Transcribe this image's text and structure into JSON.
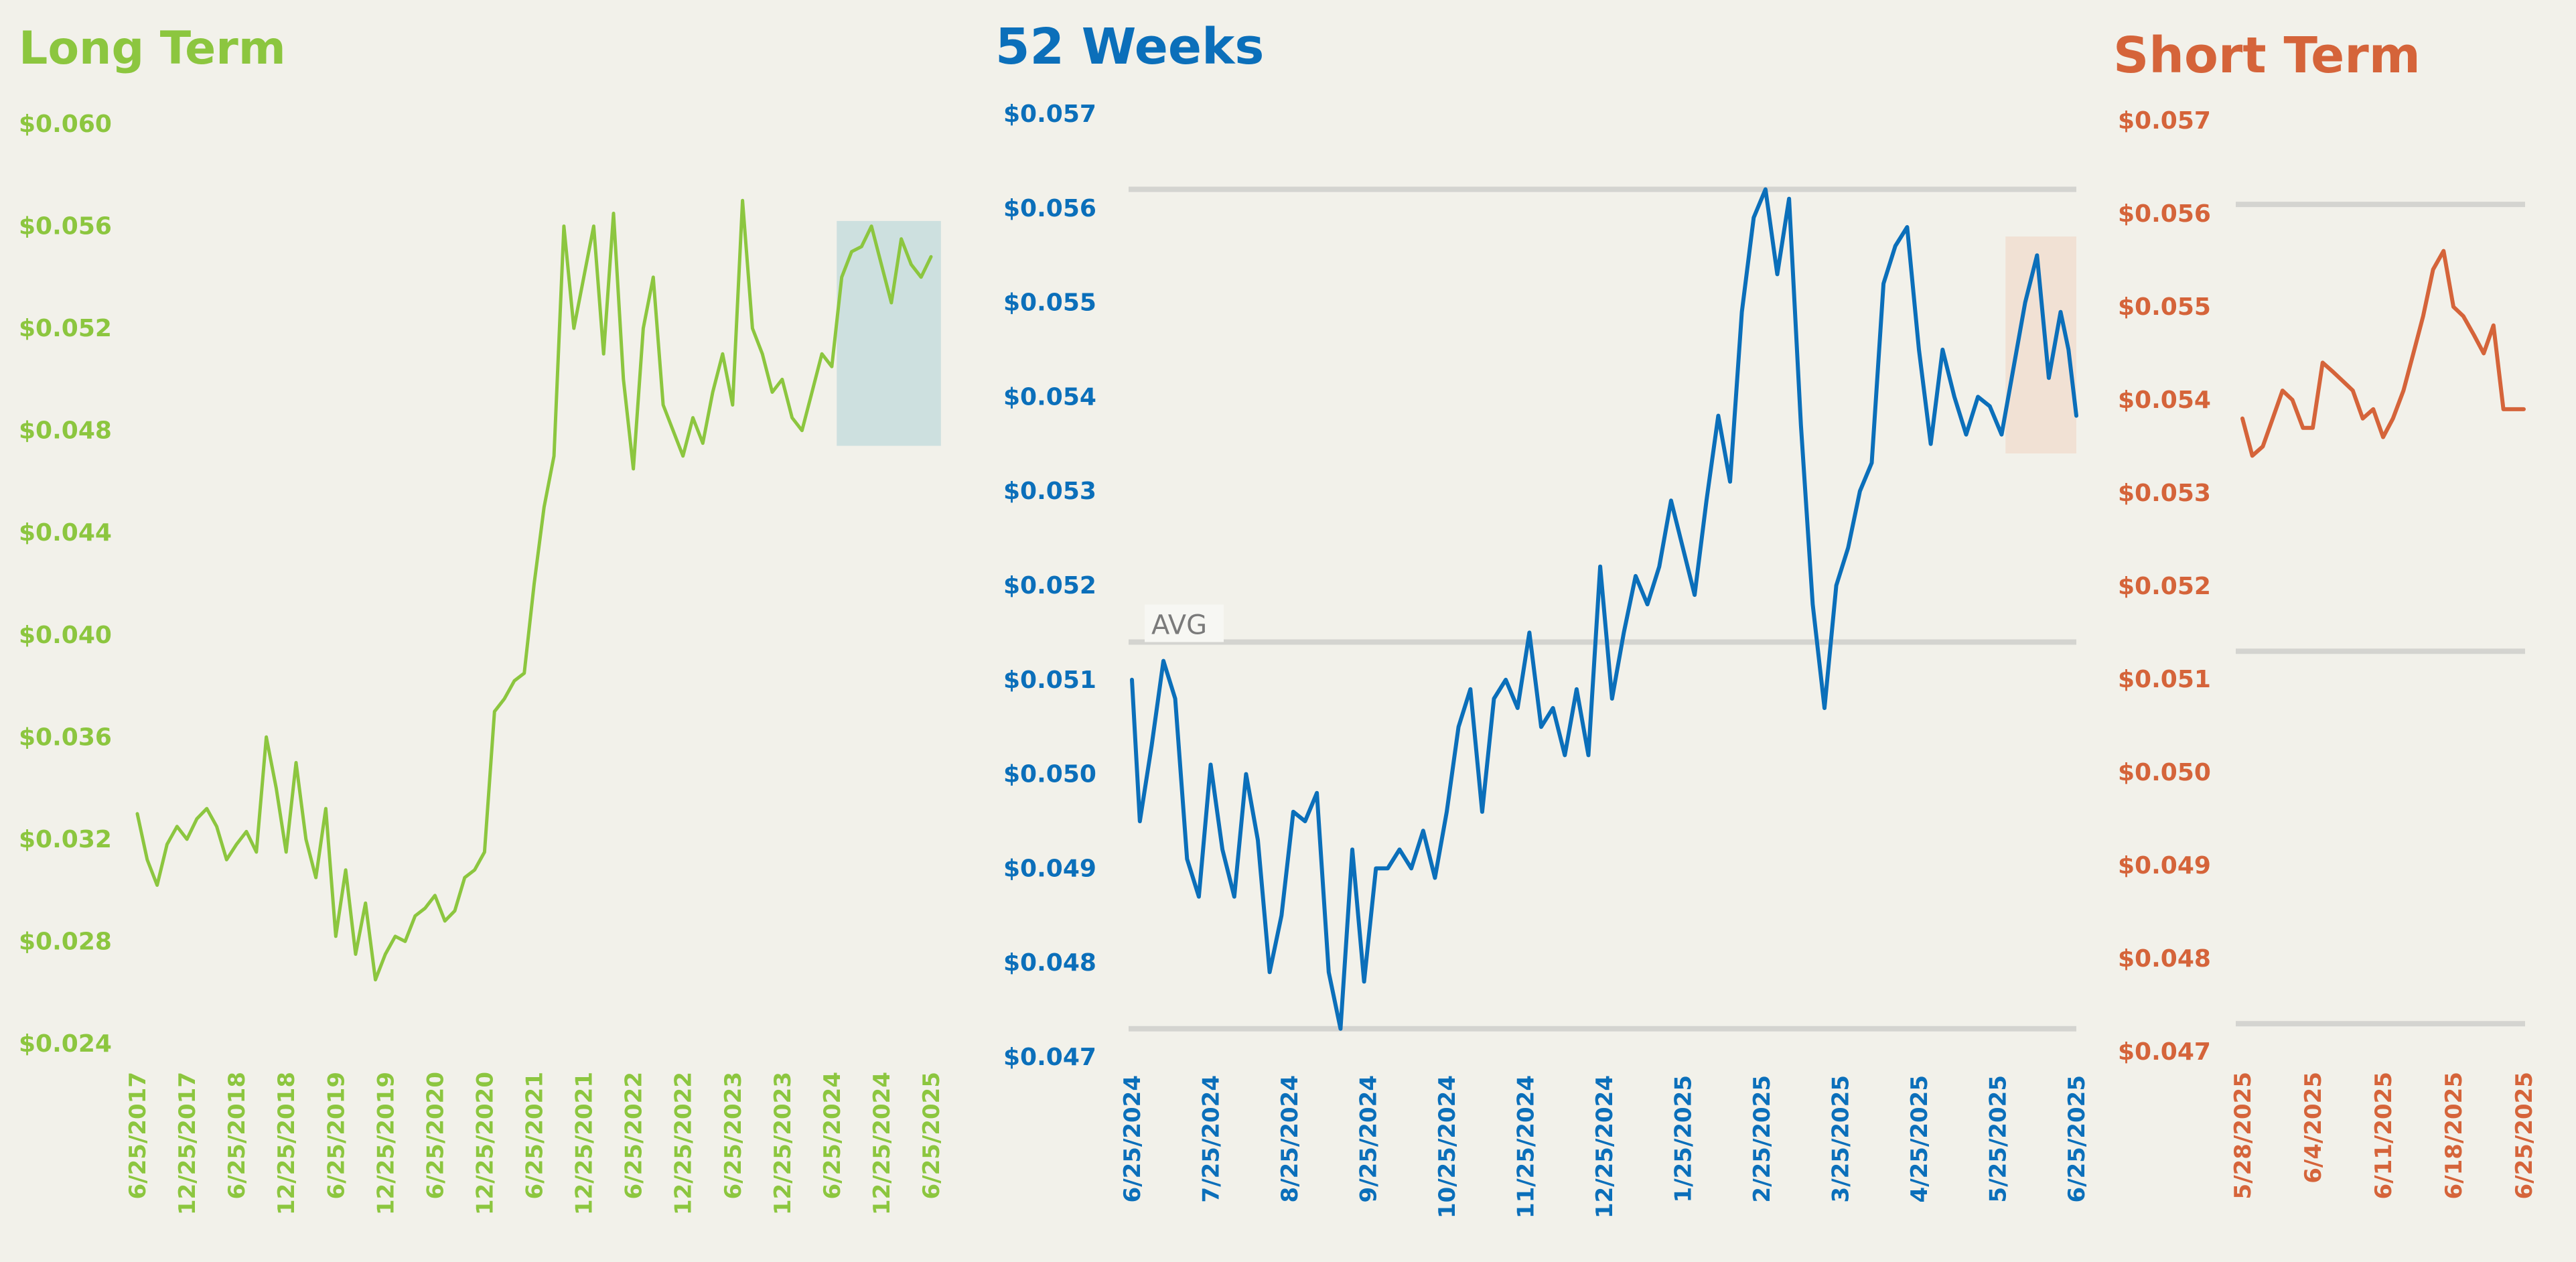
{
  "chart_data": [
    {
      "type": "line",
      "title": "Long Term",
      "color": "#8cc63f",
      "highlight_color": "#c9dede",
      "ylim": [
        0.024,
        0.06
      ],
      "y_ticks": [
        "$0.060",
        "$0.056",
        "$0.052",
        "$0.048",
        "$0.044",
        "$0.040",
        "$0.036",
        "$0.032",
        "$0.028",
        "$0.024"
      ],
      "x_ticks": [
        "6/25/2017",
        "12/25/2017",
        "6/25/2018",
        "12/25/2018",
        "6/25/2019",
        "12/25/2019",
        "6/25/2020",
        "12/25/2020",
        "6/25/2021",
        "12/25/2021",
        "6/25/2022",
        "12/25/2022",
        "6/25/2023",
        "12/25/2023",
        "6/25/2024",
        "12/25/2024",
        "6/25/2025"
      ],
      "highlight": {
        "x_start": 14.1,
        "x_end": 16.2,
        "y_low": 0.0474,
        "y_high": 0.0562
      },
      "x": [
        0,
        0.2,
        0.4,
        0.6,
        0.8,
        1.0,
        1.2,
        1.4,
        1.6,
        1.8,
        2.0,
        2.2,
        2.4,
        2.6,
        2.8,
        3.0,
        3.2,
        3.4,
        3.6,
        3.8,
        4.0,
        4.2,
        4.4,
        4.6,
        4.8,
        5.0,
        5.2,
        5.4,
        5.6,
        5.8,
        6.0,
        6.2,
        6.4,
        6.6,
        6.8,
        7.0,
        7.2,
        7.4,
        7.6,
        7.8,
        8.0,
        8.2,
        8.4,
        8.6,
        8.8,
        9.0,
        9.2,
        9.4,
        9.6,
        9.8,
        10.0,
        10.2,
        10.4,
        10.6,
        10.8,
        11.0,
        11.2,
        11.4,
        11.6,
        11.8,
        12.0,
        12.2,
        12.4,
        12.6,
        12.8,
        13.0,
        13.2,
        13.4,
        13.6,
        13.8,
        14.0,
        14.2,
        14.4,
        14.6,
        14.8,
        15.0,
        15.2,
        15.4,
        15.6,
        15.8,
        16.0
      ],
      "values": [
        0.033,
        0.0312,
        0.0302,
        0.0318,
        0.0325,
        0.032,
        0.0328,
        0.0332,
        0.0325,
        0.0312,
        0.0318,
        0.0323,
        0.0315,
        0.036,
        0.034,
        0.0315,
        0.035,
        0.032,
        0.0305,
        0.0332,
        0.0282,
        0.0308,
        0.0275,
        0.0295,
        0.0265,
        0.0275,
        0.0282,
        0.028,
        0.029,
        0.0293,
        0.0298,
        0.0288,
        0.0292,
        0.0305,
        0.0308,
        0.0315,
        0.037,
        0.0375,
        0.0382,
        0.0385,
        0.042,
        0.045,
        0.047,
        0.056,
        0.052,
        0.054,
        0.056,
        0.051,
        0.0565,
        0.05,
        0.0465,
        0.052,
        0.054,
        0.049,
        0.048,
        0.047,
        0.0485,
        0.0475,
        0.0495,
        0.051,
        0.049,
        0.057,
        0.052,
        0.051,
        0.0495,
        0.05,
        0.0485,
        0.048,
        0.0495,
        0.051,
        0.0505,
        0.054,
        0.055,
        0.0552,
        0.056,
        0.0545,
        0.053,
        0.0555,
        0.0545,
        0.054,
        0.0548
      ]
    },
    {
      "type": "line",
      "title": "52 Weeks",
      "color": "#0b6fba",
      "highlight_color": "#f1dfd2",
      "ylim": [
        0.047,
        0.057
      ],
      "y_ticks": [
        "$0.057",
        "$0.056",
        "$0.055",
        "$0.054",
        "$0.053",
        "$0.052",
        "$0.051",
        "$0.050",
        "$0.049",
        "$0.048",
        "$0.047"
      ],
      "x_ticks": [
        "6/25/2024",
        "7/25/2024",
        "8/25/2024",
        "9/25/2024",
        "10/25/2024",
        "11/25/2024",
        "12/25/2024",
        "1/25/2025",
        "2/25/2025",
        "3/25/2025",
        "4/25/2025",
        "5/25/2025",
        "6/25/2025"
      ],
      "ref_lines": [
        0.0562,
        0.0514,
        0.0473
      ],
      "avg_label": "AVG",
      "avg_value": 0.0514,
      "highlight": {
        "x_start": 11.1,
        "x_end": 12.0,
        "y_low": 0.0534,
        "y_high": 0.0557
      },
      "x": [
        0,
        0.1,
        0.25,
        0.4,
        0.55,
        0.7,
        0.85,
        1.0,
        1.15,
        1.3,
        1.45,
        1.6,
        1.75,
        1.9,
        2.05,
        2.2,
        2.35,
        2.5,
        2.65,
        2.8,
        2.95,
        3.1,
        3.25,
        3.4,
        3.55,
        3.7,
        3.85,
        4.0,
        4.15,
        4.3,
        4.45,
        4.6,
        4.75,
        4.9,
        5.05,
        5.2,
        5.35,
        5.5,
        5.65,
        5.8,
        5.95,
        6.1,
        6.25,
        6.4,
        6.55,
        6.7,
        6.85,
        7.0,
        7.15,
        7.3,
        7.45,
        7.6,
        7.75,
        7.9,
        8.05,
        8.2,
        8.35,
        8.5,
        8.65,
        8.8,
        8.95,
        9.1,
        9.25,
        9.4,
        9.55,
        9.7,
        9.85,
        10.0,
        10.15,
        10.3,
        10.45,
        10.6,
        10.75,
        10.9,
        11.05,
        11.2,
        11.35,
        11.5,
        11.65,
        11.8,
        11.9,
        12.0
      ],
      "values": [
        0.051,
        0.0495,
        0.0503,
        0.0512,
        0.0508,
        0.0491,
        0.0487,
        0.0501,
        0.0492,
        0.0487,
        0.05,
        0.0493,
        0.0479,
        0.0485,
        0.0496,
        0.0495,
        0.0498,
        0.0479,
        0.0473,
        0.0492,
        0.0478,
        0.049,
        0.049,
        0.0492,
        0.049,
        0.0494,
        0.0489,
        0.0496,
        0.0505,
        0.0509,
        0.0496,
        0.0508,
        0.051,
        0.0507,
        0.0515,
        0.0505,
        0.0507,
        0.0502,
        0.0509,
        0.0502,
        0.0522,
        0.0508,
        0.0515,
        0.0521,
        0.0518,
        0.0522,
        0.0529,
        0.0524,
        0.0519,
        0.0529,
        0.0538,
        0.0531,
        0.0549,
        0.0559,
        0.0562,
        0.0553,
        0.0561,
        0.0537,
        0.0518,
        0.0507,
        0.052,
        0.0524,
        0.053,
        0.0533,
        0.0552,
        0.0556,
        0.0558,
        0.0545,
        0.0535,
        0.0545,
        0.054,
        0.0536,
        0.054,
        0.0539,
        0.0536,
        0.0543,
        0.055,
        0.0555,
        0.0542,
        0.0549,
        0.0545,
        0.0538
      ]
    },
    {
      "type": "line",
      "title": "Short Term",
      "color": "#d5643a",
      "ylim": [
        0.047,
        0.057
      ],
      "y_ticks": [
        "$0.057",
        "$0.056",
        "$0.055",
        "$0.054",
        "$0.053",
        "$0.052",
        "$0.051",
        "$0.050",
        "$0.049",
        "$0.048",
        "$0.047"
      ],
      "x_ticks": [
        "5/28/2025",
        "6/4/2025",
        "6/11/2025",
        "6/18/2025",
        "6/25/2025"
      ],
      "ref_lines": [
        0.0561,
        0.0513,
        0.0473
      ],
      "x": [
        0,
        0.14,
        0.29,
        0.43,
        0.57,
        0.71,
        0.86,
        1.0,
        1.14,
        1.29,
        1.43,
        1.57,
        1.71,
        1.86,
        2.0,
        2.14,
        2.29,
        2.43,
        2.57,
        2.71,
        2.86,
        3.0,
        3.14,
        3.29,
        3.43,
        3.57,
        3.71,
        3.86,
        4.0
      ],
      "values": [
        0.0538,
        0.0534,
        0.0535,
        0.0538,
        0.0541,
        0.054,
        0.0537,
        0.0537,
        0.0544,
        0.0543,
        0.0542,
        0.0541,
        0.0538,
        0.0539,
        0.0536,
        0.0538,
        0.0541,
        0.0545,
        0.0549,
        0.0554,
        0.0556,
        0.055,
        0.0549,
        0.0547,
        0.0545,
        0.0548,
        0.0539,
        0.0539,
        0.0539
      ]
    }
  ]
}
